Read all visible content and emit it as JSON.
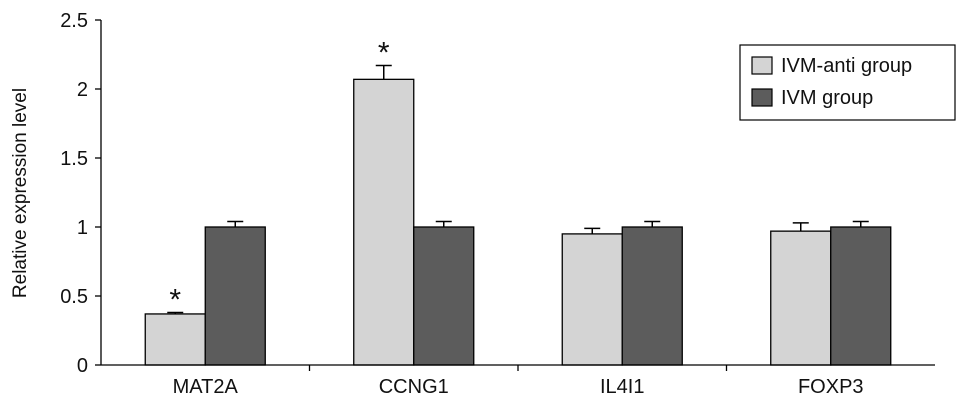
{
  "chart_data": {
    "type": "bar",
    "categories": [
      "MAT2A",
      "CCNG1",
      "IL4I1",
      "FOXP3"
    ],
    "series": [
      {
        "name": "IVM-anti group",
        "values": [
          0.37,
          2.07,
          0.95,
          0.97
        ],
        "errors": [
          0.01,
          0.1,
          0.04,
          0.06
        ],
        "color": "#d4d4d4"
      },
      {
        "name": "IVM group",
        "values": [
          1.0,
          1.0,
          1.0,
          1.0
        ],
        "errors": [
          0.04,
          0.04,
          0.04,
          0.04
        ],
        "color": "#5c5c5c"
      }
    ],
    "ylabel": "Relative expression level",
    "ylim": [
      0,
      2.5
    ],
    "yticks": [
      0,
      0.5,
      1,
      1.5,
      2,
      2.5
    ],
    "ytick_labels": [
      "0",
      "0.5",
      "1",
      "1.5",
      "2",
      "2.5"
    ],
    "annotations": [
      {
        "category": "MAT2A",
        "series": "IVM-anti group",
        "text": "*"
      },
      {
        "category": "CCNG1",
        "series": "IVM-anti group",
        "text": "*"
      }
    ],
    "legend": "top-right",
    "grid": false
  }
}
